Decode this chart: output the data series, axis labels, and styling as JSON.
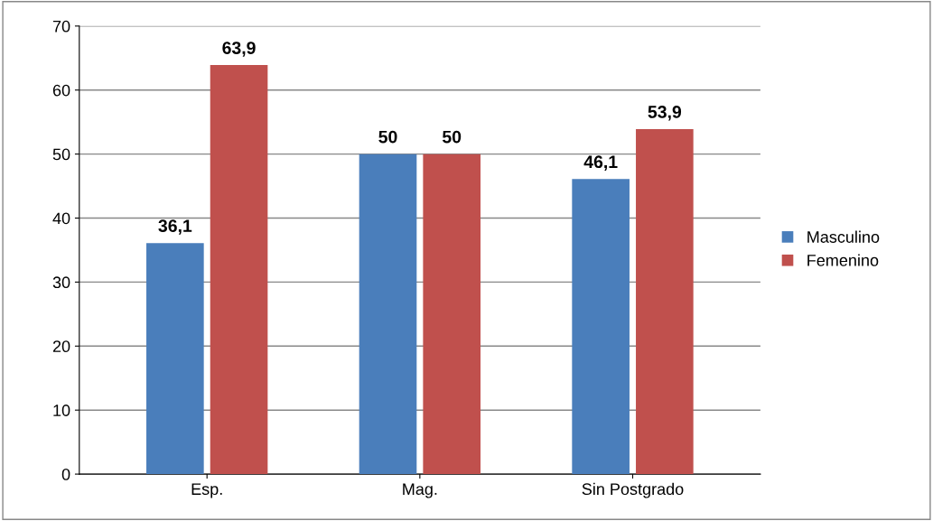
{
  "chart_data": {
    "type": "bar",
    "categories": [
      "Esp.",
      "Mag.",
      "Sin Postgrado"
    ],
    "series": [
      {
        "name": "Masculino",
        "color": "#4a7ebb",
        "values": [
          36.1,
          50,
          46.1
        ],
        "value_labels": [
          "36,1",
          "50",
          "46,1"
        ]
      },
      {
        "name": "Femenino",
        "color": "#c0504d",
        "values": [
          63.9,
          50,
          53.9
        ],
        "value_labels": [
          "63,9",
          "50",
          "53,9"
        ]
      }
    ],
    "ylim": [
      0,
      70
    ],
    "yticks": [
      0,
      10,
      20,
      30,
      40,
      50,
      60,
      70
    ],
    "grid": "y",
    "legend": "right"
  }
}
